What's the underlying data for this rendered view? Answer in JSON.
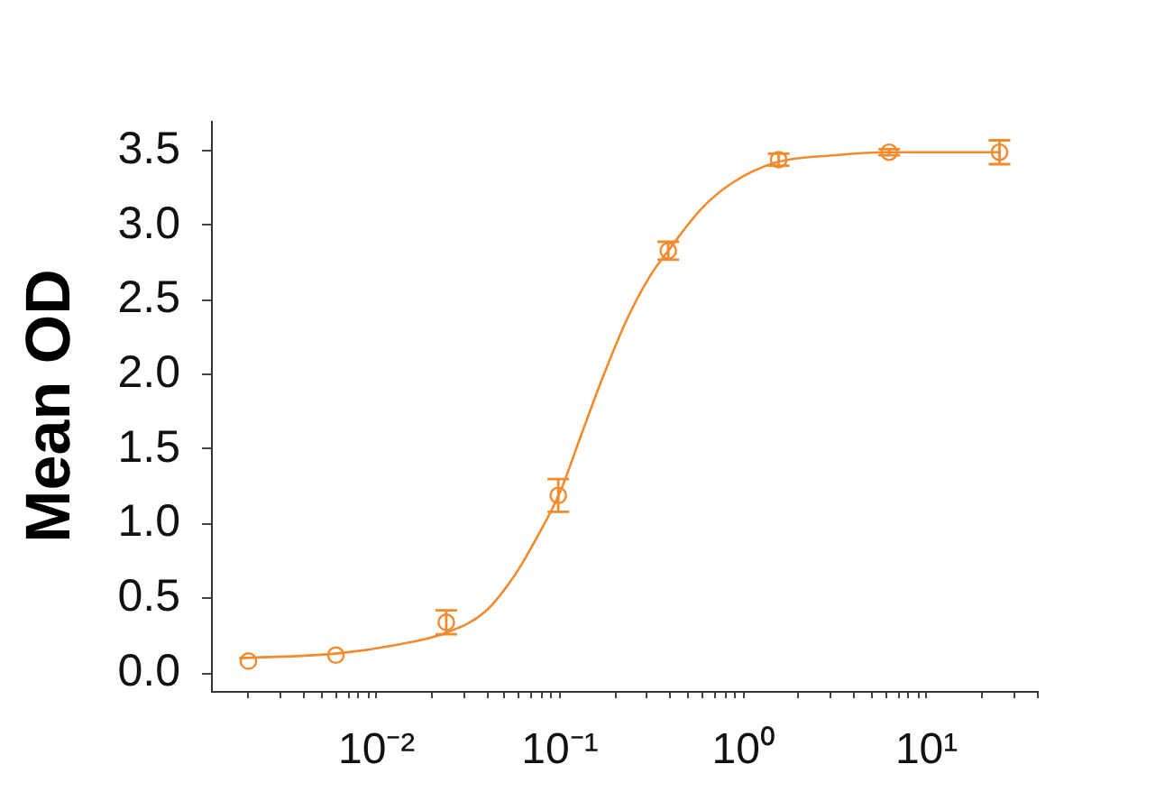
{
  "chart_data": {
    "type": "scatter",
    "ylabel": "Mean OD",
    "log": "x",
    "x": [
      0.002,
      0.006,
      0.024,
      0.098,
      0.39,
      1.56,
      6.25,
      25
    ],
    "series": [
      {
        "type": "scatter",
        "color": "#f28a2e",
        "marker": "circle",
        "values": [
          0.08,
          0.12,
          0.34,
          1.19,
          2.83,
          3.44,
          3.49,
          3.49
        ],
        "errors": [
          null,
          null,
          0.08,
          0.11,
          0.06,
          0.04,
          0.02,
          0.08
        ]
      },
      {
        "type": "line",
        "color": "#f28a2e",
        "marker": "none",
        "line_style": "solid",
        "x": [
          0.0018,
          0.006,
          0.013,
          0.024,
          0.039,
          0.057,
          0.075,
          0.1,
          0.132,
          0.175,
          0.23,
          0.31,
          0.39,
          0.59,
          0.86,
          1.5,
          3.2,
          6.2,
          25
        ],
        "values": [
          0.1,
          0.13,
          0.19,
          0.27,
          0.41,
          0.66,
          0.91,
          1.21,
          1.61,
          2.01,
          2.36,
          2.66,
          2.83,
          3.11,
          3.28,
          3.42,
          3.47,
          3.49,
          3.49
        ]
      }
    ],
    "xlim": [
      0.00125,
      40
    ],
    "ylim": [
      -0.12,
      3.7
    ],
    "xticks": [
      {
        "value": 0.002,
        "label": null
      },
      {
        "value": 0.003,
        "label": null
      },
      {
        "value": 0.004,
        "label": null
      },
      {
        "value": 0.005,
        "label": null
      },
      {
        "value": 0.006,
        "label": null
      },
      {
        "value": 0.007,
        "label": null
      },
      {
        "value": 0.008,
        "label": null
      },
      {
        "value": 0.009,
        "label": null
      },
      {
        "value": 0.01,
        "label": "10⁻²"
      },
      {
        "value": 0.02,
        "label": null
      },
      {
        "value": 0.03,
        "label": null
      },
      {
        "value": 0.04,
        "label": null
      },
      {
        "value": 0.05,
        "label": null
      },
      {
        "value": 0.06,
        "label": null
      },
      {
        "value": 0.07,
        "label": null
      },
      {
        "value": 0.08,
        "label": null
      },
      {
        "value": 0.09,
        "label": null
      },
      {
        "value": 0.1,
        "label": "10⁻¹"
      },
      {
        "value": 0.2,
        "label": null
      },
      {
        "value": 0.3,
        "label": null
      },
      {
        "value": 0.4,
        "label": null
      },
      {
        "value": 0.5,
        "label": null
      },
      {
        "value": 0.6,
        "label": null
      },
      {
        "value": 0.7,
        "label": null
      },
      {
        "value": 0.8,
        "label": null
      },
      {
        "value": 0.9,
        "label": null
      },
      {
        "value": 1,
        "label": "10⁰"
      },
      {
        "value": 2,
        "label": null
      },
      {
        "value": 3,
        "label": null
      },
      {
        "value": 4,
        "label": null
      },
      {
        "value": 5,
        "label": null
      },
      {
        "value": 6,
        "label": null
      },
      {
        "value": 7,
        "label": null
      },
      {
        "value": 8,
        "label": null
      },
      {
        "value": 9,
        "label": null
      },
      {
        "value": 10,
        "label": "10¹"
      },
      {
        "value": 20,
        "label": null
      },
      {
        "value": 30,
        "label": null
      },
      {
        "value": 40,
        "label": null
      }
    ],
    "yticks": [
      {
        "value": 0,
        "label": "0.0"
      },
      0.5,
      {
        "value": 1,
        "label": "1.0"
      },
      1.5,
      {
        "value": 2,
        "label": "2.0"
      },
      2.5,
      {
        "value": 3,
        "label": "3.0"
      },
      3.5
    ]
  }
}
